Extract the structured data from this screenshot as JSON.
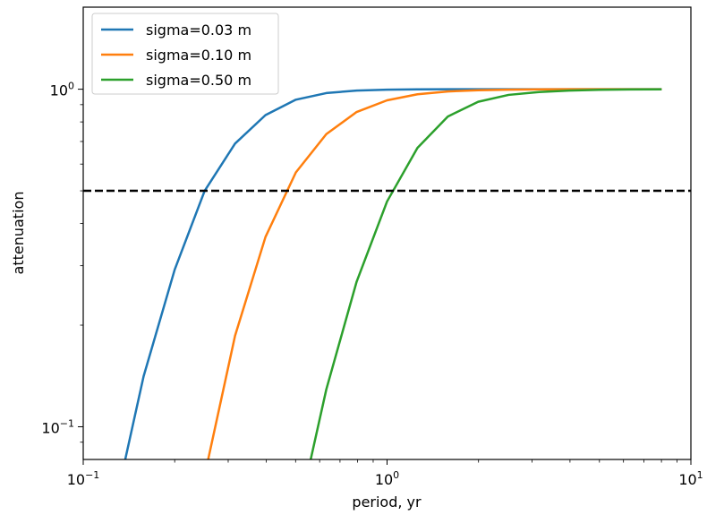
{
  "chart_data": {
    "type": "line",
    "xscale": "log",
    "yscale": "log",
    "xlabel": "period, yr",
    "ylabel": "attenuation",
    "xlim": [
      0.1,
      10
    ],
    "ylim": [
      0.08,
      1.75
    ],
    "grid": false,
    "legend": "top-left",
    "x_ticks": [
      {
        "value": 0.1,
        "base": "10",
        "exp": "−1"
      },
      {
        "value": 1,
        "base": "10",
        "exp": "0"
      },
      {
        "value": 10,
        "base": "10",
        "exp": "1"
      }
    ],
    "y_ticks": [
      {
        "value": 0.1,
        "base": "10",
        "exp": "−1"
      },
      {
        "value": 1,
        "base": "10",
        "exp": "0"
      }
    ],
    "reference_line": {
      "y": 0.5,
      "style": "dashed",
      "color": "#000000"
    },
    "series": [
      {
        "name": "sigma=0.03 m",
        "color": "#1f77b4",
        "x": [
          0.126,
          0.158,
          0.2,
          0.251,
          0.316,
          0.398,
          0.501,
          0.631,
          0.794,
          1.0,
          1.259,
          1.585,
          1.995,
          2.512,
          3.162,
          3.981,
          5.012,
          6.31,
          7.943
        ],
        "y": [
          0.0561,
          0.141,
          0.292,
          0.5,
          0.69,
          0.838,
          0.931,
          0.974,
          0.991,
          0.997,
          0.999,
          1.0,
          1.0,
          1.0,
          1.0,
          1.0,
          1.0,
          1.0,
          1.0
        ]
      },
      {
        "name": "sigma=0.10 m",
        "color": "#ff7f0e",
        "x": [
          0.251,
          0.316,
          0.398,
          0.501,
          0.631,
          0.794,
          1.0,
          1.259,
          1.585,
          1.995,
          2.512,
          3.162,
          3.981,
          5.012,
          6.31,
          7.943
        ],
        "y": [
          0.0717,
          0.186,
          0.365,
          0.567,
          0.736,
          0.856,
          0.927,
          0.966,
          0.985,
          0.993,
          0.997,
          0.999,
          1.0,
          1.0,
          1.0,
          1.0
        ]
      },
      {
        "name": "sigma=0.50 m",
        "color": "#2ca02c",
        "x": [
          0.501,
          0.631,
          0.794,
          1.0,
          1.259,
          1.585,
          1.995,
          2.512,
          3.162,
          3.981,
          5.012,
          6.31,
          7.943
        ],
        "y": [
          0.0508,
          0.129,
          0.269,
          0.465,
          0.67,
          0.83,
          0.918,
          0.962,
          0.981,
          0.991,
          0.996,
          0.998,
          0.999
        ]
      }
    ]
  }
}
